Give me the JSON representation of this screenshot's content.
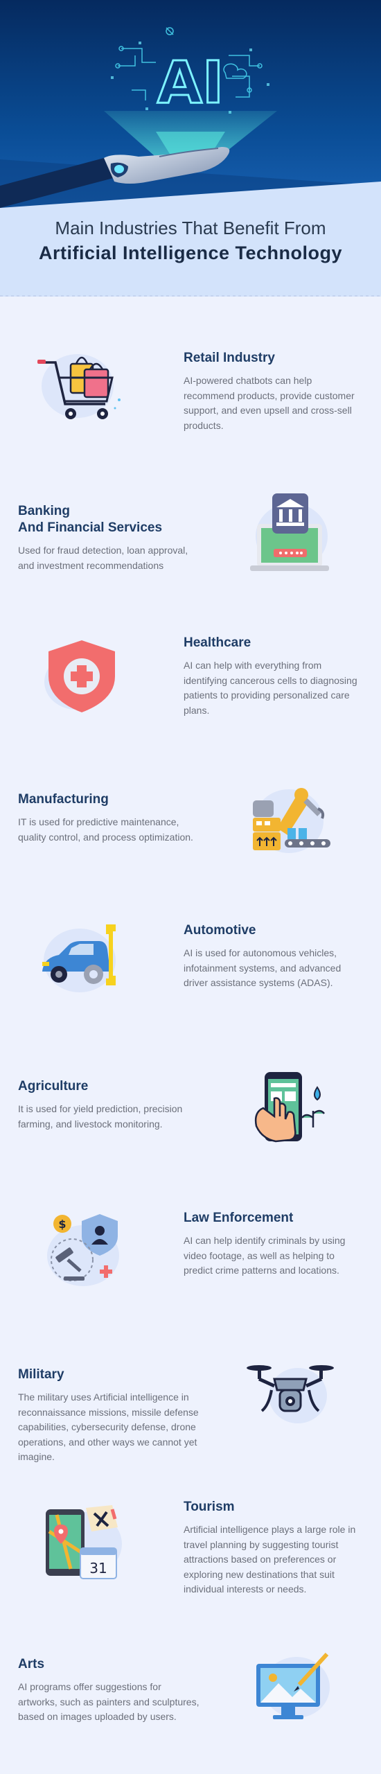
{
  "hero": {
    "title_line1": "Main Industries That Benefit From",
    "title_line2": "Artificial Intelligence Technology",
    "ai_logo_text": "AI"
  },
  "industries": [
    {
      "title": "Retail Industry",
      "description": "AI-powered chatbots can help recommend products, provide customer support, and even upsell and cross-sell products.",
      "icon": "shopping-cart-icon"
    },
    {
      "title_line1": "Banking",
      "title_line2": "And Financial Services",
      "description": "Used for fraud detection, loan approval, and investment recommendations",
      "icon": "bank-laptop-icon"
    },
    {
      "title": "Healthcare",
      "description": "AI can help with everything from identifying cancerous cells to diagnosing patients to providing personalized care plans.",
      "icon": "medical-shield-icon"
    },
    {
      "title": "Manufacturing",
      "description": "IT is used for predictive maintenance, quality control, and process optimization.",
      "icon": "robot-arm-icon"
    },
    {
      "title": "Automotive",
      "description": "AI is used for autonomous vehicles, infotainment systems, and advanced driver assistance systems (ADAS).",
      "icon": "car-wrench-icon"
    },
    {
      "title": "Agriculture",
      "description": "It is used for yield prediction, precision farming, and livestock monitoring.",
      "icon": "smart-farming-phone-icon"
    },
    {
      "title": "Law Enforcement",
      "description": "AI can help identify criminals by using video footage, as well as helping to predict crime patterns and locations.",
      "icon": "law-enforcement-icon"
    },
    {
      "title": "Military",
      "description": "The military uses Artificial intelligence in reconnaissance missions, missile defense capabilities, cybersecurity defense, drone operations, and other ways we cannot yet imagine.",
      "icon": "drone-icon"
    },
    {
      "title": "Tourism",
      "description": "Artificial intelligence plays a large role in travel planning by suggesting tourist attractions based on preferences or exploring new destinations that suit individual interests or needs.",
      "icon": "travel-map-icon"
    },
    {
      "title": "Arts",
      "description": "AI programs offer suggestions for artworks, such as painters and sculptures, based on images uploaded by users.",
      "icon": "art-monitor-icon"
    }
  ],
  "calendar_day": "31",
  "colors": {
    "heading": "#1f3d66",
    "body_text": "#6b6f7a",
    "background": "#eef2fd",
    "hero_dark": "#06306a"
  }
}
